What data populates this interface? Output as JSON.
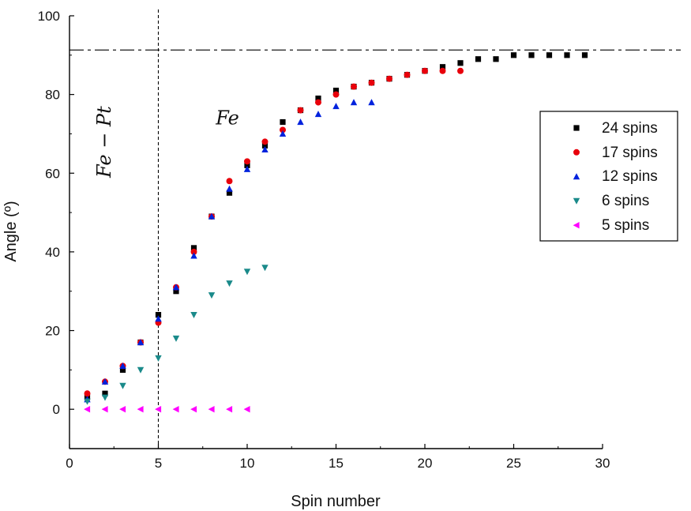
{
  "chart_data": {
    "type": "scatter",
    "title": "",
    "xlabel": "Spin number",
    "ylabel": "Angle (º)",
    "xlim": [
      0,
      30
    ],
    "ylim": [
      -10,
      100
    ],
    "xticks": [
      0,
      5,
      10,
      15,
      20,
      25,
      30
    ],
    "yticks": [
      0,
      20,
      40,
      60,
      80,
      100
    ],
    "grid": false,
    "legend_position": "right",
    "reference_lines": [
      {
        "orientation": "vertical",
        "value": 5,
        "style": "dashed"
      },
      {
        "orientation": "horizontal",
        "value": 91.3,
        "style": "dash-dot"
      }
    ],
    "annotations": [
      {
        "text": "Fe − Pt",
        "x": 2.3,
        "y": 80,
        "rotation": -90
      },
      {
        "text": "Fe",
        "x": 8.5,
        "y": 74
      }
    ],
    "series": [
      {
        "name": "24 spins",
        "marker": "square",
        "color": "#000000",
        "x": [
          1,
          2,
          3,
          4,
          5,
          6,
          7,
          8,
          9,
          10,
          11,
          12,
          13,
          14,
          15,
          16,
          17,
          18,
          19,
          20,
          21,
          22,
          23,
          24,
          25,
          26,
          27,
          28,
          29
        ],
        "y": [
          3,
          4,
          10,
          17,
          24,
          30,
          41,
          49,
          55,
          62,
          67,
          73,
          76,
          79,
          81,
          82,
          83,
          84,
          85,
          86,
          87,
          88,
          89,
          89,
          90,
          90,
          90,
          90,
          90
        ]
      },
      {
        "name": "17 spins",
        "marker": "circle",
        "color": "#e8000b",
        "x": [
          1,
          2,
          3,
          4,
          5,
          6,
          7,
          8,
          9,
          10,
          11,
          12,
          13,
          14,
          15,
          16,
          17,
          18,
          19,
          20,
          21,
          22
        ],
        "y": [
          4,
          7,
          11,
          17,
          22,
          31,
          40,
          49,
          58,
          63,
          68,
          71,
          76,
          78,
          80,
          82,
          83,
          84,
          85,
          86,
          86,
          86
        ]
      },
      {
        "name": "12 spins",
        "marker": "triangle-up",
        "color": "#0022dd",
        "x": [
          1,
          2,
          3,
          4,
          5,
          6,
          7,
          8,
          9,
          10,
          11,
          12,
          13,
          14,
          15,
          16,
          17
        ],
        "y": [
          2.5,
          7,
          11,
          17,
          23,
          31,
          39,
          49,
          56,
          61,
          66,
          70,
          73,
          75,
          77,
          78,
          78
        ]
      },
      {
        "name": "6 spins",
        "marker": "triangle-down",
        "color": "#1a8a8a",
        "x": [
          1,
          2,
          3,
          4,
          5,
          6,
          7,
          8,
          9,
          10,
          11
        ],
        "y": [
          2,
          3,
          6,
          10,
          13,
          18,
          24,
          29,
          32,
          35,
          36
        ]
      },
      {
        "name": "5 spins",
        "marker": "triangle-left",
        "color": "#ff00ff",
        "x": [
          1,
          2,
          3,
          4,
          5,
          6,
          7,
          8,
          9,
          10
        ],
        "y": [
          0,
          0,
          0,
          0,
          0,
          0,
          0,
          0,
          0,
          0
        ]
      }
    ]
  }
}
